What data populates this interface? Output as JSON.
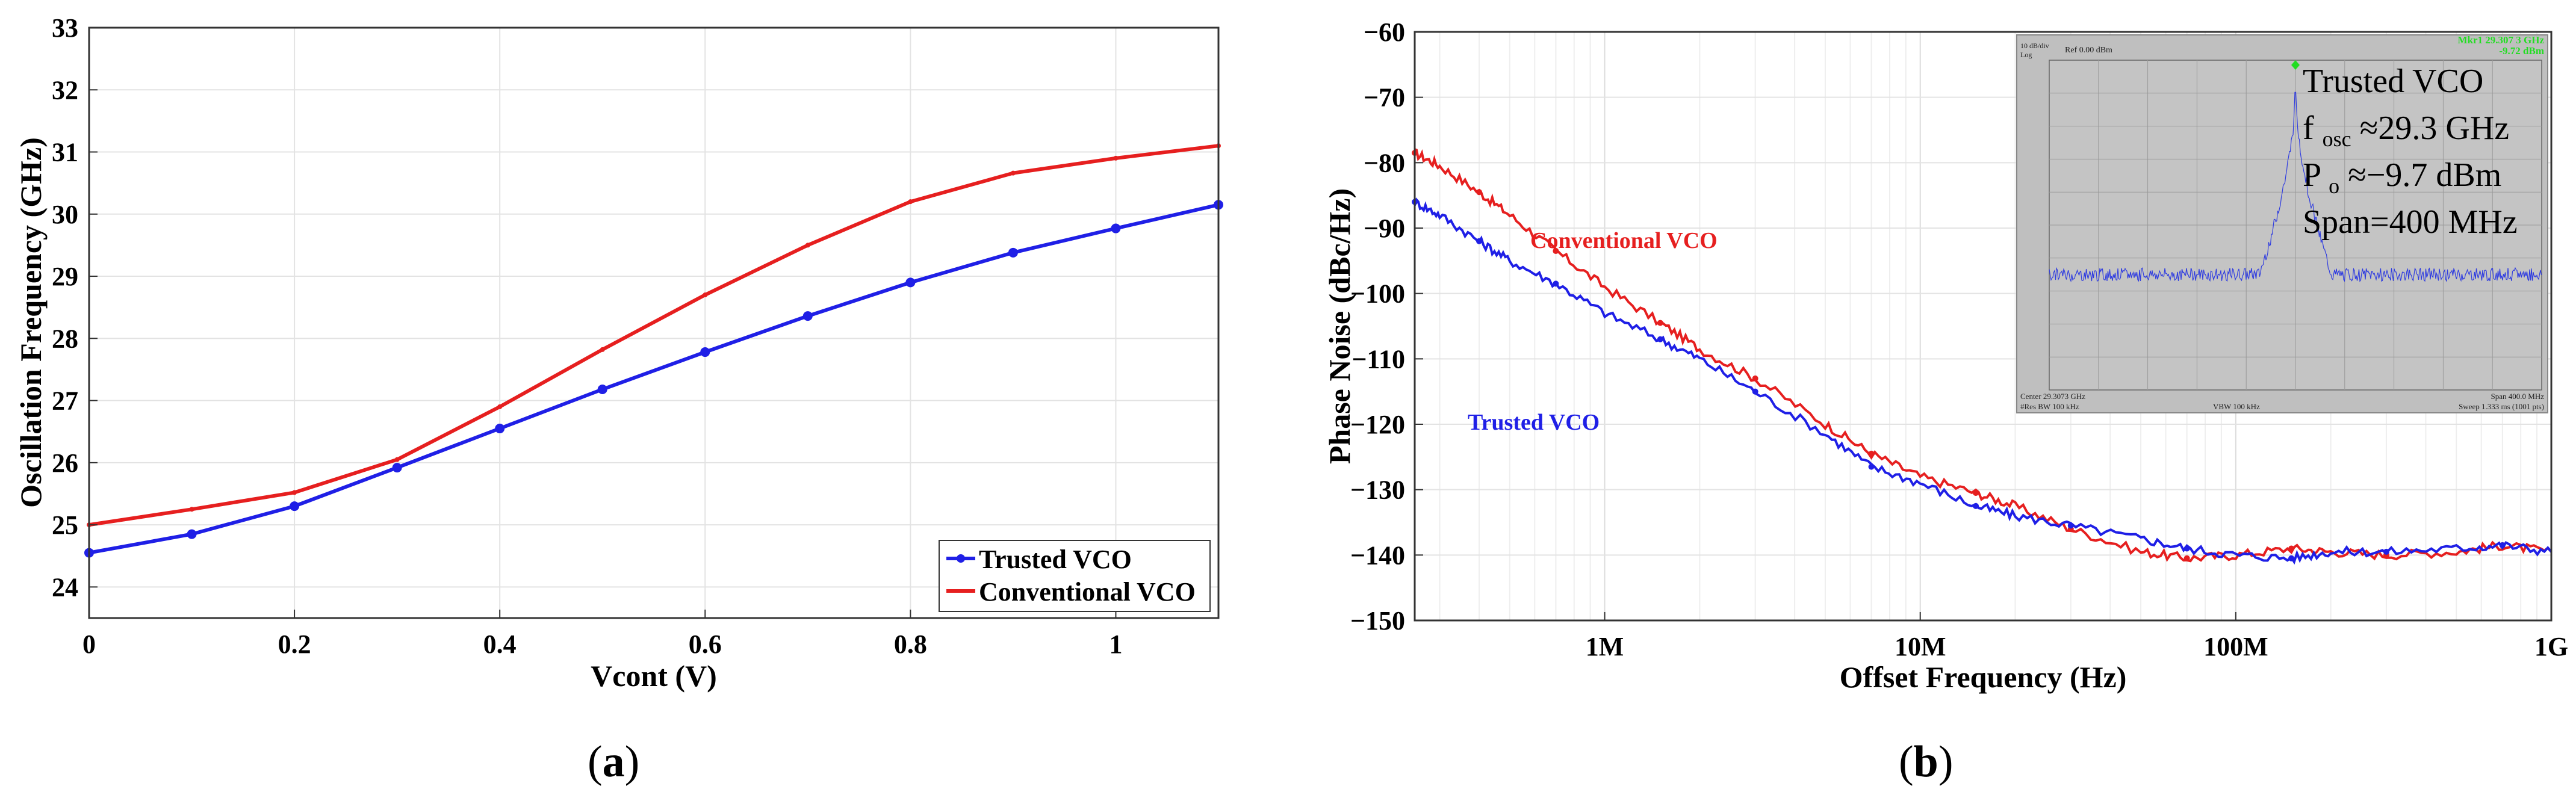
{
  "chart_data": [
    {
      "type": "line",
      "panel_label": "a",
      "xlabel": "Vcont (V)",
      "ylabel": "Oscillation Frequency (GHz)",
      "xlim": [
        0,
        1.1
      ],
      "ylim": [
        23.5,
        33
      ],
      "xticks": [
        0,
        0.2,
        0.4,
        0.6,
        0.8,
        1
      ],
      "xtick_labels": [
        "0",
        "0.2",
        "0.4",
        "0.6",
        "0.8",
        "1"
      ],
      "yticks": [
        24,
        25,
        26,
        27,
        28,
        29,
        30,
        31,
        32,
        33
      ],
      "ytick_labels": [
        "24",
        "25",
        "26",
        "27",
        "28",
        "29",
        "30",
        "31",
        "32",
        "33"
      ],
      "grid": true,
      "legend_position": "bottom-right",
      "x": [
        0,
        0.1,
        0.2,
        0.3,
        0.4,
        0.5,
        0.6,
        0.7,
        0.8,
        0.9,
        1.0,
        1.1
      ],
      "series": [
        {
          "name": "Trusted VCO",
          "color": "#1f1fe6",
          "marker": "circle",
          "values": [
            24.55,
            24.85,
            25.3,
            25.92,
            26.55,
            27.18,
            27.78,
            28.36,
            28.9,
            29.38,
            29.77,
            30.15
          ]
        },
        {
          "name": "Conventional VCO",
          "color": "#e61f1f",
          "marker": "dot",
          "values": [
            25.0,
            25.25,
            25.52,
            26.05,
            26.9,
            27.82,
            28.7,
            29.5,
            30.2,
            30.66,
            30.9,
            31.1
          ]
        }
      ]
    },
    {
      "type": "line",
      "panel_label": "b",
      "xscale": "log",
      "xlabel": "Offset Frequency (Hz)",
      "ylabel": "Phase Noise (dBc/Hz)",
      "xlim": [
        250000,
        1000000000
      ],
      "ylim": [
        -150,
        -60
      ],
      "xticks": [
        1000000,
        10000000,
        100000000,
        1000000000
      ],
      "xtick_labels": [
        "1M",
        "10M",
        "100M",
        "1G"
      ],
      "yticks": [
        -60,
        -70,
        -80,
        -90,
        -100,
        -110,
        -120,
        -130,
        -140,
        -150
      ],
      "ytick_labels": [
        "−60",
        "−70",
        "−80",
        "−90",
        "−100",
        "−110",
        "−120",
        "−130",
        "−140",
        "−150"
      ],
      "grid": true,
      "series": [
        {
          "name": "Conventional VCO",
          "color": "#e61f1f",
          "x": [
            250000,
            300000,
            400000,
            500000,
            700000,
            1000000,
            1500000,
            2000000,
            3000000,
            5000000,
            7000000,
            10000000,
            15000000,
            20000000,
            30000000,
            50000000,
            70000000,
            100000000,
            150000000,
            200000000,
            300000000,
            500000000,
            700000000,
            1000000000
          ],
          "values": [
            -78.5,
            -80.5,
            -84.5,
            -88,
            -93.5,
            -99,
            -104.5,
            -108.5,
            -113,
            -120,
            -124.5,
            -128,
            -130.5,
            -132.5,
            -136,
            -139.5,
            -140.5,
            -140,
            -139,
            -139.5,
            -140,
            -139.5,
            -138.5,
            -139.5
          ]
        },
        {
          "name": "Trusted VCO",
          "color": "#1f1fe6",
          "x": [
            250000,
            300000,
            400000,
            500000,
            700000,
            1000000,
            1500000,
            2000000,
            3000000,
            5000000,
            7000000,
            10000000,
            15000000,
            20000000,
            30000000,
            50000000,
            70000000,
            100000000,
            150000000,
            200000000,
            300000000,
            500000000,
            700000000,
            1000000000
          ],
          "values": [
            -86,
            -88,
            -92,
            -95,
            -98.5,
            -103,
            -107,
            -110,
            -115,
            -121.5,
            -126.5,
            -129,
            -132.5,
            -134,
            -135.5,
            -137.5,
            -139,
            -140,
            -140.5,
            -139.5,
            -139.5,
            -139,
            -138.5,
            -139.5
          ]
        }
      ],
      "annotations": [
        {
          "text": "Conventional VCO",
          "color": "#e61f1f"
        },
        {
          "text": "Trusted VCO",
          "color": "#1f1fe6"
        }
      ],
      "inset": {
        "type": "spectrum",
        "header_left_1": "10 dB/div",
        "header_left_2": "Log",
        "header_ref": "Ref 0.00 dBm",
        "marker_label_1": "Mkr1 29.307 3 GHz",
        "marker_label_2": "-9.72 dBm",
        "footer_center": "Center 29.3073 GHz",
        "footer_rbw": "#Res BW 100 kHz",
        "footer_vbw": "VBW 100 kHz",
        "footer_span": "Span 400.0 MHz",
        "footer_sweep": "Sweep  1.333 ms (1001 pts)",
        "title": "Trusted VCO",
        "fosc_symbol": "f",
        "fosc_sub": "osc",
        "fosc_value": " ≈29.3 GHz",
        "po_symbol": "P",
        "po_sub": "o",
        "po_value": " ≈−9.7 dBm",
        "span_text": "Span=400 MHz",
        "trace_color": "#2f3ce0",
        "marker_color": "#22dd22",
        "noise_floor_dbm": -75,
        "peak_dbm": -9.72
      }
    }
  ]
}
